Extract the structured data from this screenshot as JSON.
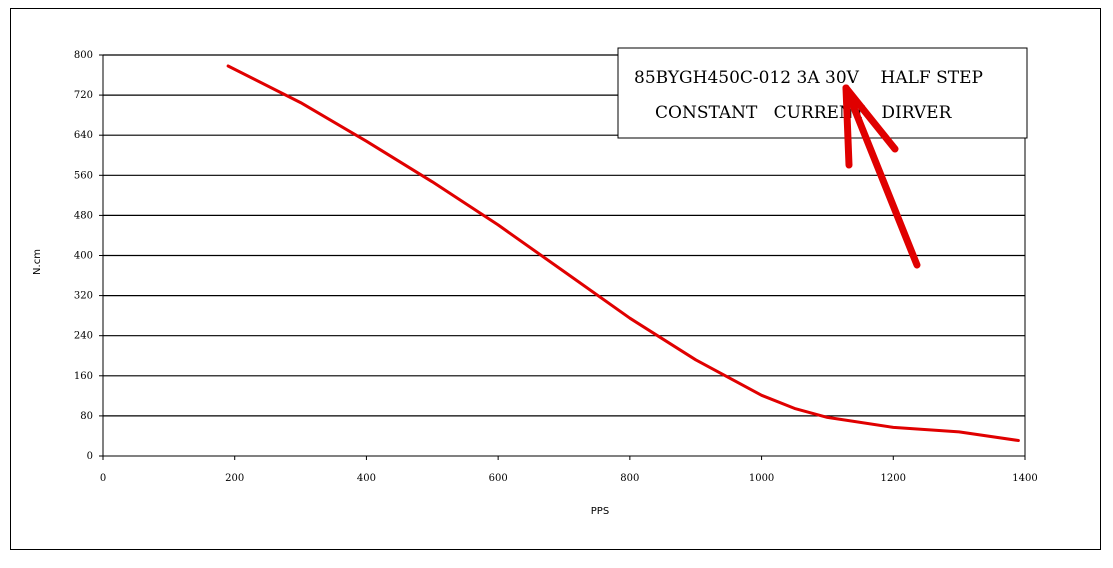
{
  "chart_data": {
    "type": "line",
    "title": "",
    "xlabel": "PPS",
    "ylabel": "N.cm",
    "xlim": [
      0,
      1400
    ],
    "ylim": [
      0,
      800
    ],
    "x_ticks": [
      "0",
      "200",
      "400",
      "600",
      "800",
      "1000",
      "1200",
      "1400"
    ],
    "y_ticks": [
      "0",
      "80",
      "160",
      "240",
      "320",
      "400",
      "480",
      "560",
      "640",
      "720",
      "800"
    ],
    "grid": true,
    "legend": {
      "line1": "85BYGH450C-012 3A 30V    HALF STEP",
      "line2": "CONSTANT   CURRENT   DIRVER",
      "placement": "top-right"
    },
    "series": [
      {
        "color": "#e00000",
        "x": [
          190,
          300,
          400,
          500,
          600,
          700,
          800,
          900,
          1000,
          1050,
          1100,
          1200,
          1300,
          1390
        ],
        "y": [
          778,
          705,
          628,
          547,
          461,
          368,
          275,
          192,
          121,
          95,
          77,
          57,
          48,
          31
        ]
      }
    ],
    "annotation": {
      "type": "arrow",
      "color": "#e00000",
      "target": "30V"
    }
  }
}
